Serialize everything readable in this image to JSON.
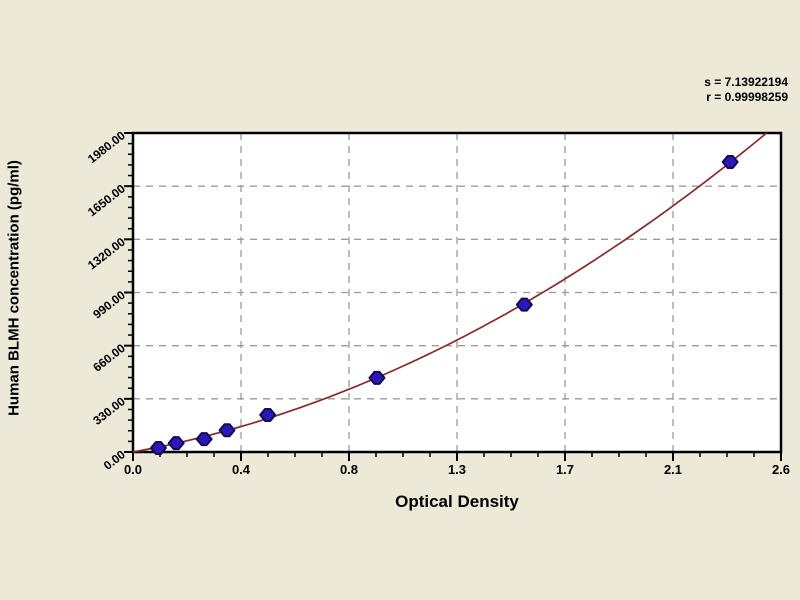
{
  "figure": {
    "background": "#ece9d8",
    "annotation": {
      "line1": "s = 7.13922194",
      "line2": "r = 0.99998259"
    }
  },
  "chart_data": {
    "type": "scatter",
    "title": "",
    "xlabel": "Optical Density",
    "ylabel": "Human BLMH concentration (pg/ml)",
    "x_tick_labels": [
      "0.0",
      "0.4",
      "0.8",
      "1.3",
      "1.7",
      "2.1",
      "2.6"
    ],
    "y_tick_labels": [
      "0.00",
      "330.00",
      "660.00",
      "990.00",
      "1320.00",
      "1650.00",
      "1980.00"
    ],
    "xlim": [
      0,
      2.55
    ],
    "ylim": [
      0,
      1980
    ],
    "grid": true,
    "legend": "none",
    "points": [
      {
        "x": 0.1,
        "y": 25
      },
      {
        "x": 0.17,
        "y": 55
      },
      {
        "x": 0.28,
        "y": 80
      },
      {
        "x": 0.37,
        "y": 135
      },
      {
        "x": 0.53,
        "y": 230
      },
      {
        "x": 0.96,
        "y": 460
      },
      {
        "x": 1.54,
        "y": 915
      },
      {
        "x": 2.35,
        "y": 1800
      }
    ],
    "curve_fit": "quadratic-through-origin",
    "colors": {
      "plot_bg": "#ffffff",
      "frame": "#000000",
      "grid": "#9b9b9b",
      "curve": "#8b2a2a",
      "marker": "#2a18b8",
      "marker_border": "#160a52"
    }
  }
}
